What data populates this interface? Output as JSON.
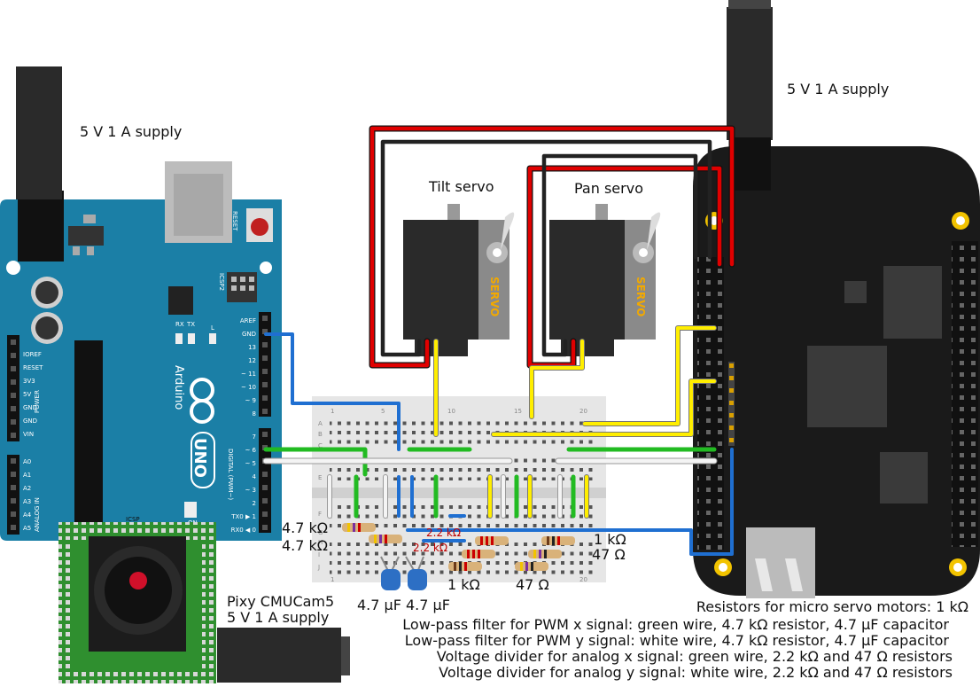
{
  "labels": {
    "supply_left": "5 V 1 A supply",
    "supply_right": "5 V 1 A supply",
    "tilt_servo": "Tilt servo",
    "pan_servo": "Pan servo",
    "servo_mark": "SERVO",
    "pixy_name": "Pixy CMUCam5",
    "pixy_supply": "5 V 1 A supply",
    "icsp": "ICSP",
    "arduino": "Arduino",
    "uno": "UNO",
    "r_47k_1": "4.7 kΩ",
    "r_47k_2": "4.7 kΩ",
    "r_22k_1": "2.2 kΩ",
    "r_22k_2": "2.2 kΩ",
    "r_1k_right": "1 kΩ",
    "r_47_right": "47 Ω",
    "r_1k_bottom": "1 kΩ",
    "r_47_bottom": "47 Ω",
    "cap_1": "4.7 µF",
    "cap_2": "4.7 µF"
  },
  "arduino_pins": {
    "aref": "AREF",
    "gnd": "GND",
    "p13": "13",
    "p12": "12",
    "p11": "~ 11",
    "p10": "~ 10",
    "p9": "~ 9",
    "p8": "8",
    "p7": "7",
    "p6": "~ 6",
    "p5": "~ 5",
    "p4": "4",
    "p3": "~ 3",
    "p2": "2",
    "tx": "TX0 ▶ 1",
    "rx": "RX0 ◀ 0",
    "ioref": "IOREF",
    "reset": "RESET",
    "v33": "3V3",
    "v5": "5V",
    "gnd1": "GND",
    "gnd2": "GND",
    "vin": "VIN",
    "a0": "A0",
    "a1": "A1",
    "a2": "A2",
    "a3": "A3",
    "a4": "A4",
    "a5": "A5",
    "power": "POWER",
    "analog_in": "ANALOG IN",
    "digital": "DIGITAL (PWM~)",
    "reset_btn": "RESET",
    "icsp2": "ICSP2",
    "tx_led": "TX",
    "rx_led": "RX",
    "l_led": "L",
    "on_led": "ON"
  },
  "breadboard": {
    "col_1": "1",
    "col_5": "5",
    "col_10": "10",
    "col_15": "15",
    "col_20": "20",
    "row_a": "A",
    "row_b": "B",
    "row_c": "C",
    "row_d": "D",
    "row_e": "E",
    "row_f": "F",
    "row_g": "G",
    "row_h": "H",
    "row_i": "I",
    "row_j": "J"
  },
  "notes": [
    "Resistors for micro servo motors: 1 kΩ",
    "Low-pass filter for PWM x signal: green wire, 4.7 kΩ resistor, 4.7 µF capacitor",
    "Low-pass filter for PWM y signal: white wire, 4.7 kΩ resistor, 4.7 µF capacitor",
    "Voltage divider for analog x signal: green wire, 2.2 kΩ and 47 Ω resistors",
    "Voltage divider for analog y signal: white wire, 2.2 kΩ and 47 Ω resistors"
  ],
  "colors": {
    "arduino": "#1b7fa6",
    "beaglebone": "#1a1a1a",
    "pixy_board": "#2f8f2f",
    "wire_red": "#e00000",
    "wire_black": "#222222",
    "wire_yellow": "#ffee00",
    "wire_green": "#22bb22",
    "wire_white": "#f4f4f4",
    "wire_blue": "#1f6fd1",
    "breadboard": "#e6e6e6"
  }
}
